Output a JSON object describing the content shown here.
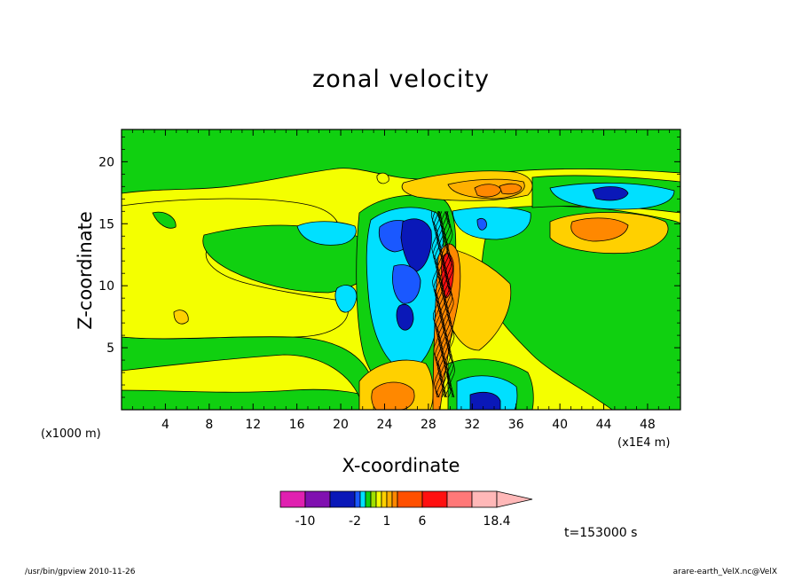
{
  "chart_data": {
    "type": "heatmap",
    "title": "zonal velocity",
    "xlabel": "X-coordinate",
    "ylabel": "Z-coordinate",
    "x_unit": "(x1E4 m)",
    "y_unit": "(x1000 m)",
    "xlim": [
      0,
      51
    ],
    "ylim": [
      0,
      22.6
    ],
    "x_ticks": [
      "4",
      "8",
      "12",
      "16",
      "20",
      "24",
      "28",
      "32",
      "36",
      "40",
      "44",
      "48"
    ],
    "y_ticks": [
      "5",
      "10",
      "15",
      "20"
    ],
    "colorbar": {
      "levels": [
        -14,
        -10,
        -6,
        -2,
        -1.5,
        -1,
        -0.5,
        0,
        0.5,
        1,
        1.5,
        2,
        6,
        10,
        14,
        18.4
      ],
      "tick_labels": [
        "-10",
        "-2",
        "1",
        "6",
        "18.4"
      ],
      "colors": [
        "#e020b0",
        "#8010b0",
        "#0a18b8",
        "#1a58ff",
        "#00e0ff",
        "#10d010",
        "#a0e000",
        "#f4ff00",
        "#ffd000",
        "#ffb000",
        "#ff8800",
        "#ff5000",
        "#ff1010",
        "#ff7878",
        "#ffb8b8"
      ],
      "extend": "max"
    },
    "annotation": "t=153000 s"
  },
  "footer": {
    "left": "/usr/bin/gpview  2010-11-26",
    "right": "arare-earth_VelX.nc@VelX"
  }
}
